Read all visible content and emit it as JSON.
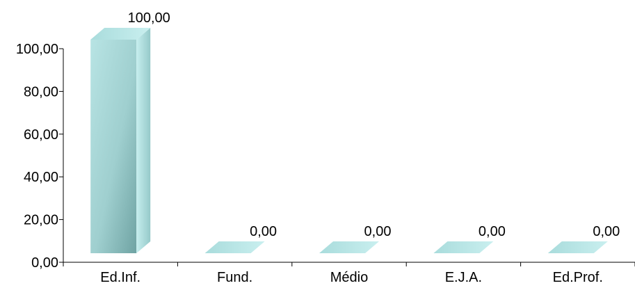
{
  "chart_data": {
    "type": "bar",
    "style": "3d-column",
    "categories": [
      "Ed.Inf.",
      "Fund.",
      "Médio",
      "E.J.A.",
      "Ed.Prof."
    ],
    "values": [
      100,
      0,
      0,
      0,
      0
    ],
    "data_labels": [
      "100,00",
      "0,00",
      "0,00",
      "0,00",
      "0,00"
    ],
    "y_ticks": [
      "0,00",
      "20,00",
      "40,00",
      "60,00",
      "80,00",
      "100,00"
    ],
    "ylim": [
      0,
      100
    ],
    "title": "",
    "xlabel": "",
    "ylabel": "",
    "grid": false,
    "legend": "none",
    "colors": {
      "front": "#a6d8d8",
      "front_dark": "#7fb2b2",
      "side": "#8fc4c4",
      "top": "#b8e6e6",
      "axis": "#000000"
    }
  }
}
